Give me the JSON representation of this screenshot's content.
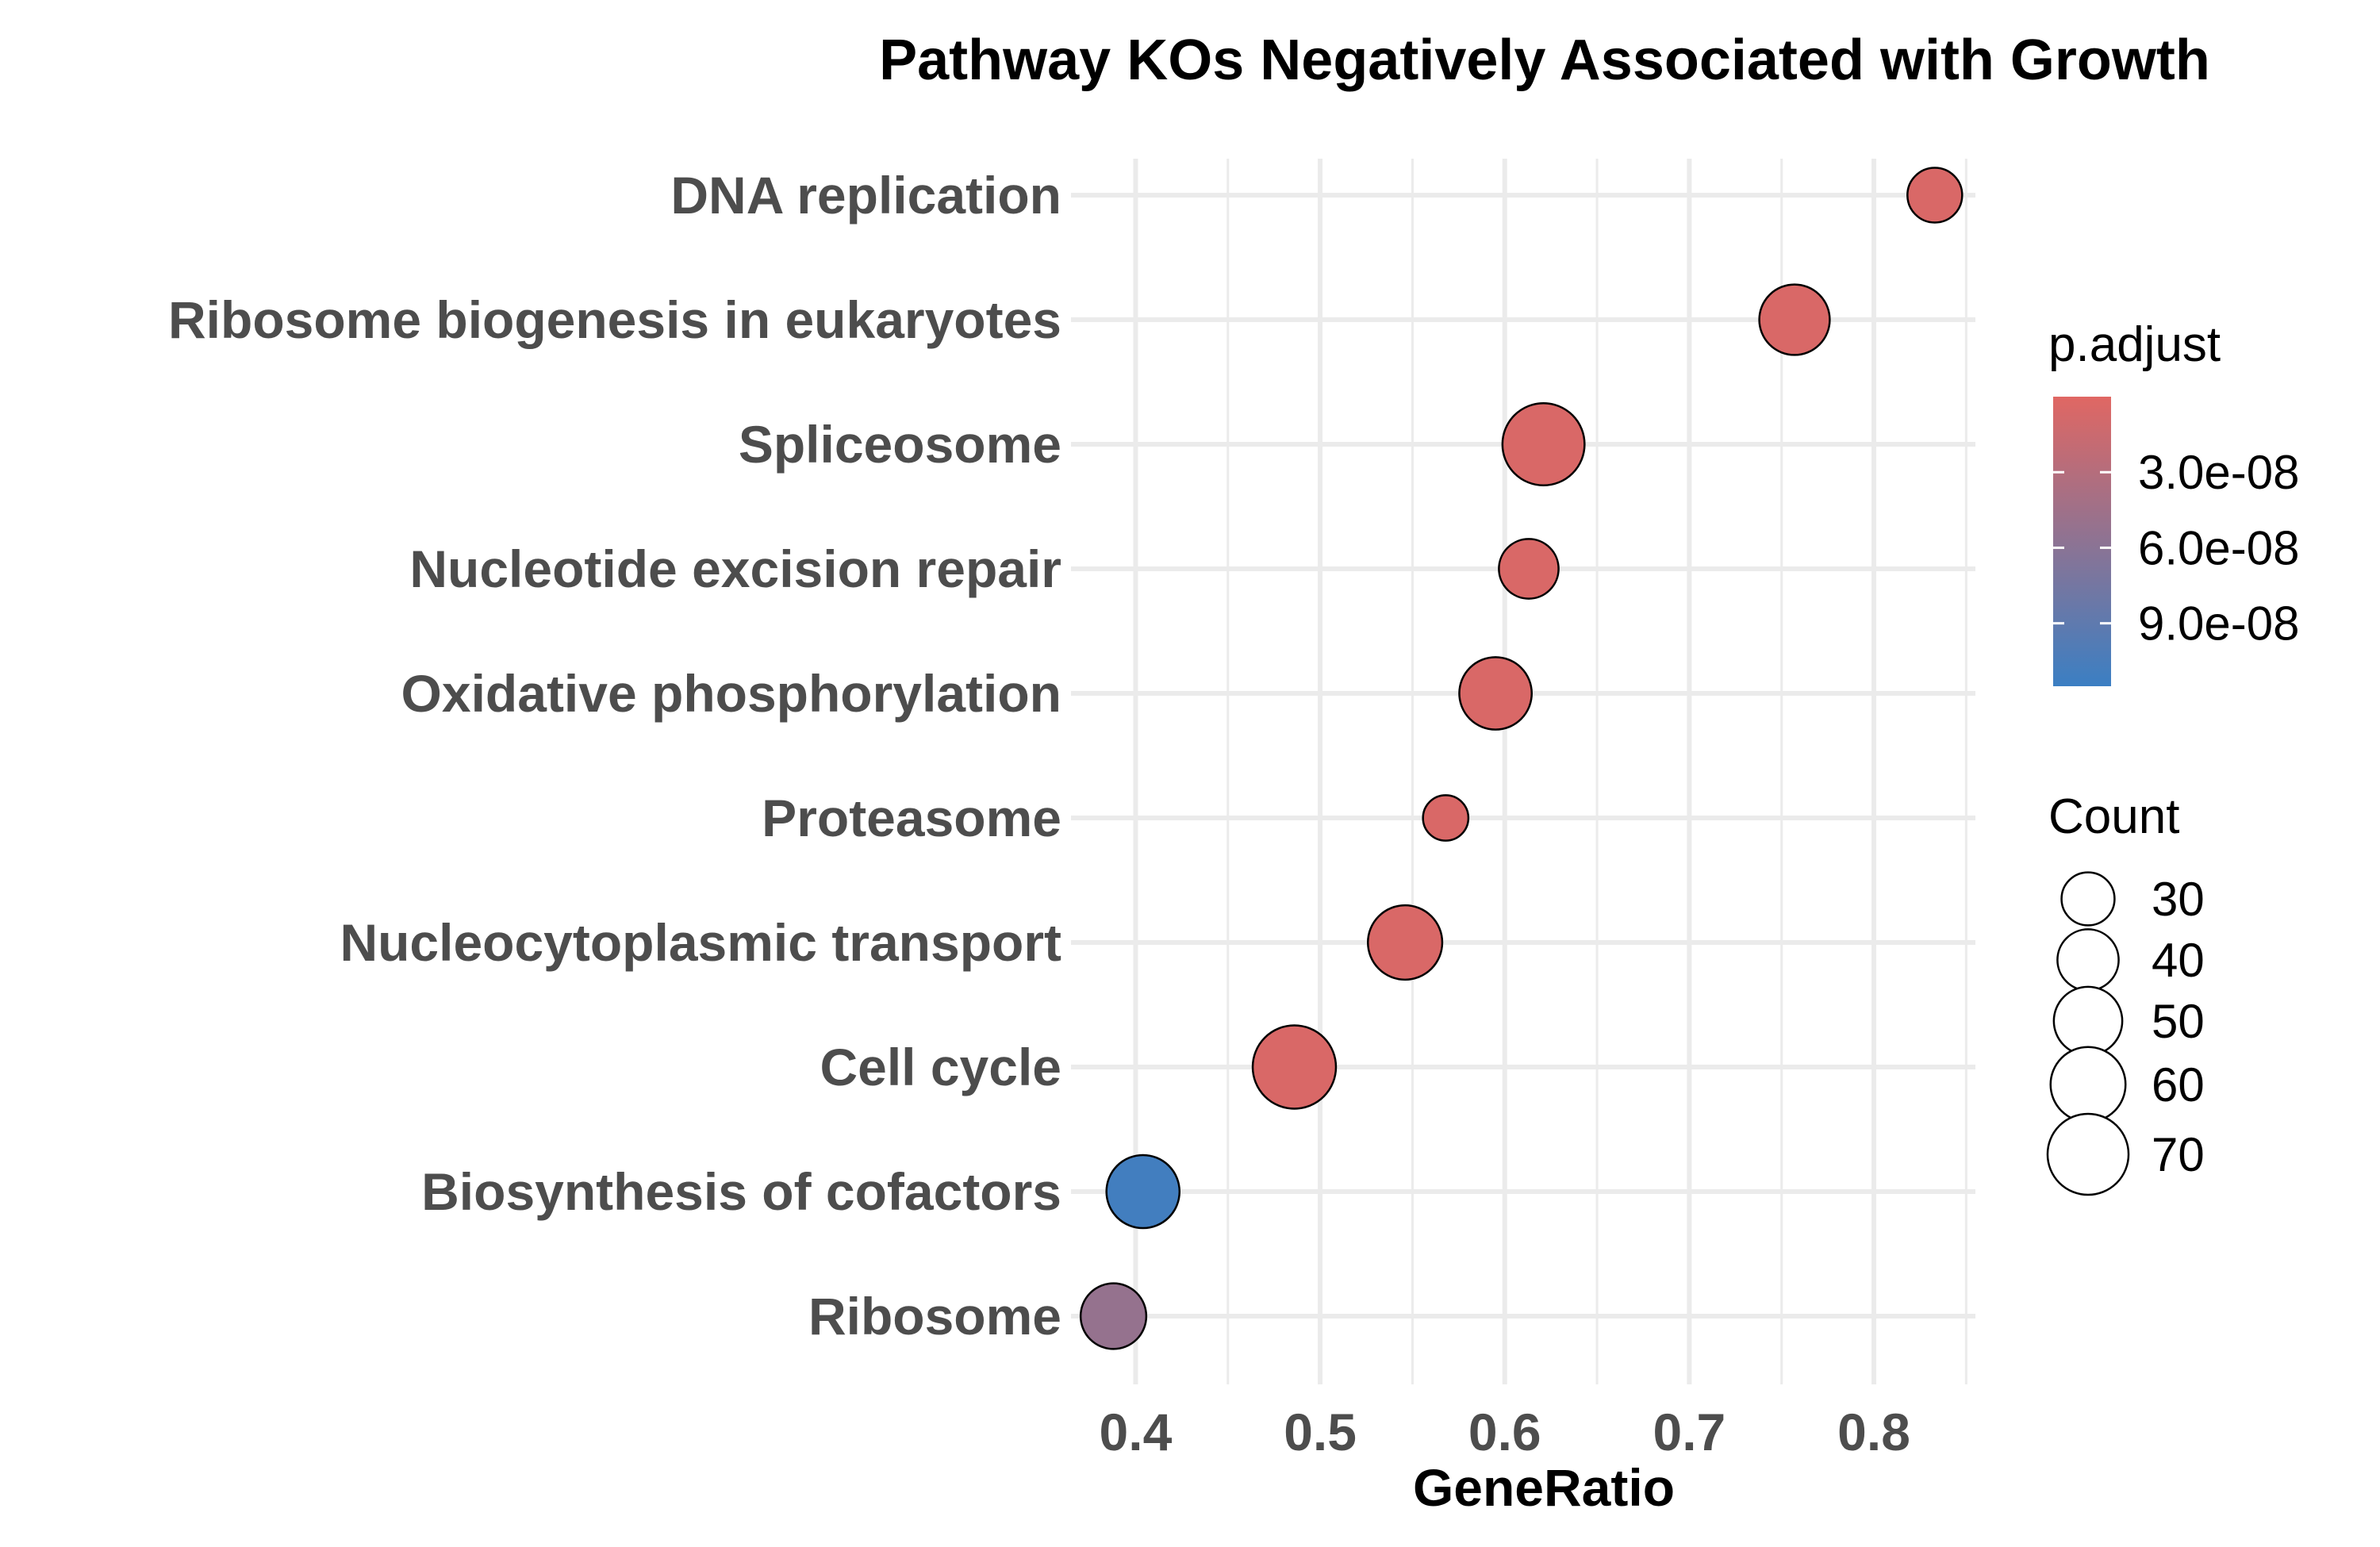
{
  "chart_data": {
    "type": "scatter",
    "title": "Pathway KOs Negatively Associated with Growth",
    "xlabel": "GeneRatio",
    "ylabel": "",
    "xlim": [
      0.365,
      0.855
    ],
    "x_ticks": [
      "0.4",
      "0.5",
      "0.6",
      "0.7",
      "0.8"
    ],
    "x_tick_values": [
      0.4,
      0.5,
      0.6,
      0.7,
      0.8
    ],
    "categories": [
      "DNA replication",
      "Ribosome biogenesis in eukaryotes",
      "Spliceosome",
      "Nucleotide excision repair",
      "Oxidative phosphorylation",
      "Proteasome",
      "Nucleocytoplasmic transport",
      "Cell cycle",
      "Biosynthesis of cofactors",
      "Ribosome"
    ],
    "points": [
      {
        "term": "DNA replication",
        "gene_ratio": 0.833,
        "count": 32,
        "p_adjust": 5e-09
      },
      {
        "term": "Ribosome biogenesis in eukaryotes",
        "gene_ratio": 0.757,
        "count": 53,
        "p_adjust": 5e-09
      },
      {
        "term": "Spliceosome",
        "gene_ratio": 0.621,
        "count": 72,
        "p_adjust": 5e-09
      },
      {
        "term": "Nucleotide excision repair",
        "gene_ratio": 0.613,
        "count": 38,
        "p_adjust": 5e-09
      },
      {
        "term": "Oxidative phosphorylation",
        "gene_ratio": 0.595,
        "count": 56,
        "p_adjust": 5e-09
      },
      {
        "term": "Proteasome",
        "gene_ratio": 0.568,
        "count": 22,
        "p_adjust": 5e-09
      },
      {
        "term": "Nucleocytoplasmic transport",
        "gene_ratio": 0.546,
        "count": 59,
        "p_adjust": 5e-09
      },
      {
        "term": "Cell cycle",
        "gene_ratio": 0.486,
        "count": 74,
        "p_adjust": 5e-09
      },
      {
        "term": "Biosynthesis of cofactors",
        "gene_ratio": 0.404,
        "count": 57,
        "p_adjust": 1.1e-07
      },
      {
        "term": "Ribosome",
        "gene_ratio": 0.388,
        "count": 46,
        "p_adjust": 5.2e-08
      }
    ],
    "color_legend": {
      "title": "p.adjust",
      "range": [
        0.0,
        1.15e-07
      ],
      "low_color": "#E06763",
      "high_color": "#3B7FC3",
      "ticks": [
        {
          "label": "3.0e-08",
          "value": 3e-08
        },
        {
          "label": "6.0e-08",
          "value": 6e-08
        },
        {
          "label": "9.0e-08",
          "value": 9e-08
        }
      ]
    },
    "size_legend": {
      "title": "Count",
      "entries": [
        {
          "label": "30",
          "value": 30
        },
        {
          "label": "40",
          "value": 40
        },
        {
          "label": "50",
          "value": 50
        },
        {
          "label": "60",
          "value": 60
        },
        {
          "label": "70",
          "value": 70
        }
      ]
    },
    "grid": true,
    "legend_position": "right"
  }
}
